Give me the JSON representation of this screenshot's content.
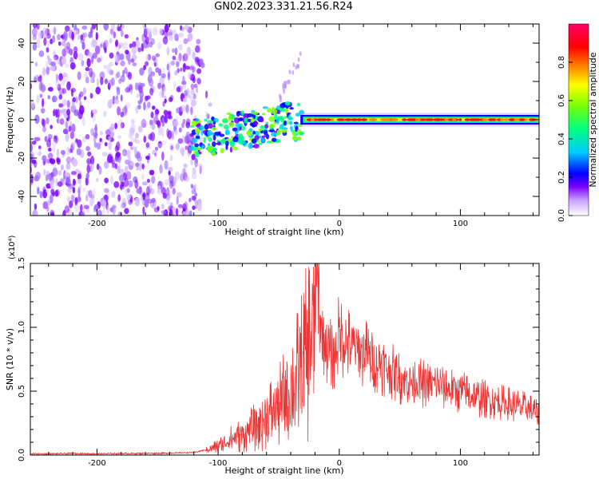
{
  "title": "GN02.2023.331.21.56.R24",
  "chart_data": [
    {
      "type": "heatmap",
      "title": "",
      "xlabel": "Height of straight line (km)",
      "ylabel": "Frequency (Hz)",
      "xlim": [
        -255,
        165
      ],
      "ylim": [
        -50,
        50
      ],
      "x_ticks": [
        -200,
        -100,
        0,
        100
      ],
      "x_tick_labels": [
        "-200",
        "-100",
        "0",
        "100"
      ],
      "y_ticks": [
        -40,
        -20,
        0,
        20,
        40
      ],
      "y_tick_labels": [
        "-40",
        "-20",
        "0",
        "20",
        "40"
      ],
      "description_regions": [
        {
          "x_range": [
            -255,
            -115
          ],
          "y_range": [
            -50,
            50
          ],
          "level": [
            0.0,
            0.15
          ]
        },
        {
          "x_range": [
            -120,
            -30
          ],
          "y_range": [
            -15,
            8
          ],
          "level": [
            0.1,
            0.6
          ]
        },
        {
          "x_range": [
            -30,
            165
          ],
          "y_range": [
            -2,
            2
          ],
          "level": [
            0.8,
            1.0
          ]
        }
      ],
      "colorbar": {
        "label": "Normalized spectral amplitude",
        "range": [
          0.0,
          1.0
        ],
        "ticks": [
          0.0,
          0.2,
          0.4,
          0.6,
          0.8
        ],
        "tick_labels": [
          "0.0",
          "0.2",
          "0.4",
          "0.6",
          "0.8"
        ],
        "colors": [
          "#ffffff",
          "#7b00ff",
          "#0000ff",
          "#00ccff",
          "#00ff80",
          "#80ff00",
          "#ffff00",
          "#ff8000",
          "#ff0000",
          "#ff0060"
        ]
      },
      "grid": false
    },
    {
      "type": "line",
      "title": "",
      "xlabel": "Height of straight line (km)",
      "ylabel": "SNR (10 * v/v)",
      "y_multiplier": "(x10⁴)",
      "xlim": [
        -255,
        165
      ],
      "ylim": [
        0.0,
        1.5
      ],
      "x_ticks": [
        -200,
        -100,
        0,
        100
      ],
      "x_tick_labels": [
        "-200",
        "-100",
        "0",
        "100"
      ],
      "y_ticks": [
        0.0,
        0.5,
        1.0,
        1.5
      ],
      "y_tick_labels": [
        "0.0",
        "0.5",
        "1.0",
        "1.5"
      ],
      "color": "#ee3333",
      "x": [
        -255,
        -240,
        -220,
        -200,
        -180,
        -160,
        -140,
        -120,
        -110,
        -100,
        -90,
        -80,
        -70,
        -60,
        -50,
        -40,
        -35,
        -30,
        -25,
        -20,
        -18,
        -15,
        -10,
        -5,
        0,
        5,
        10,
        15,
        20,
        25,
        30,
        40,
        50,
        60,
        70,
        80,
        90,
        100,
        110,
        120,
        130,
        140,
        150,
        160,
        165
      ],
      "values": [
        0.01,
        0.01,
        0.012,
        0.01,
        0.012,
        0.013,
        0.015,
        0.02,
        0.04,
        0.07,
        0.12,
        0.16,
        0.22,
        0.3,
        0.38,
        0.5,
        0.6,
        0.7,
        0.85,
        1.05,
        1.45,
        0.95,
        0.85,
        0.75,
        0.95,
        0.88,
        0.85,
        0.82,
        0.8,
        0.78,
        0.74,
        0.68,
        0.6,
        0.58,
        0.56,
        0.55,
        0.52,
        0.5,
        0.46,
        0.44,
        0.42,
        0.4,
        0.38,
        0.35,
        0.3
      ],
      "peak": {
        "x": -20,
        "y": 1.5
      },
      "grid": false
    }
  ]
}
